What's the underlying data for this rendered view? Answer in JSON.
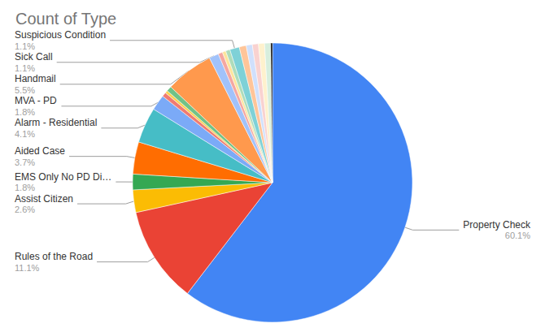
{
  "chart_data": {
    "type": "pie",
    "title": "Count of Type",
    "categories": [
      "Property Check",
      "Rules of the Road",
      "Assist Citizen",
      "EMS Only No PD Di…",
      "Aided Case",
      "Alarm - Residential",
      "MVA - PD",
      null,
      null,
      null,
      "Handmail",
      "Sick Call",
      null,
      null,
      null,
      "Suspicious Condition",
      null,
      null,
      null,
      null,
      null,
      null
    ],
    "values": [
      60.1,
      11.1,
      2.6,
      1.8,
      3.7,
      4.1,
      1.8,
      0.5,
      0.3,
      0.6,
      5.5,
      1.1,
      0.5,
      0.4,
      0.5,
      1.1,
      0.8,
      0.7,
      0.7,
      0.7,
      0.7,
      0.2
    ],
    "value_labels": [
      "60.1%",
      "11.1%",
      "2.6%",
      "1.8%",
      "3.7%",
      "4.1%",
      "1.8%",
      null,
      null,
      null,
      "5.5%",
      "1.1%",
      null,
      null,
      null,
      "1.1%",
      null,
      null,
      null,
      null,
      null,
      null
    ],
    "colors": [
      "#4285f4",
      "#ea4335",
      "#fbbc04",
      "#34a853",
      "#ff6d01",
      "#46bdc6",
      "#7baaf7",
      "#f07b72",
      "#fcd04f",
      "#71c287",
      "#ff994d",
      "#a1c2fa",
      "#f4a7a1",
      "#fde49b",
      "#aedcba",
      "#7ed1d7",
      "#ffc599",
      "#d0e0fc",
      "#f9d2d0",
      "#fef1cd",
      "#d7eedd",
      "#000000"
    ],
    "data_labels": true
  }
}
